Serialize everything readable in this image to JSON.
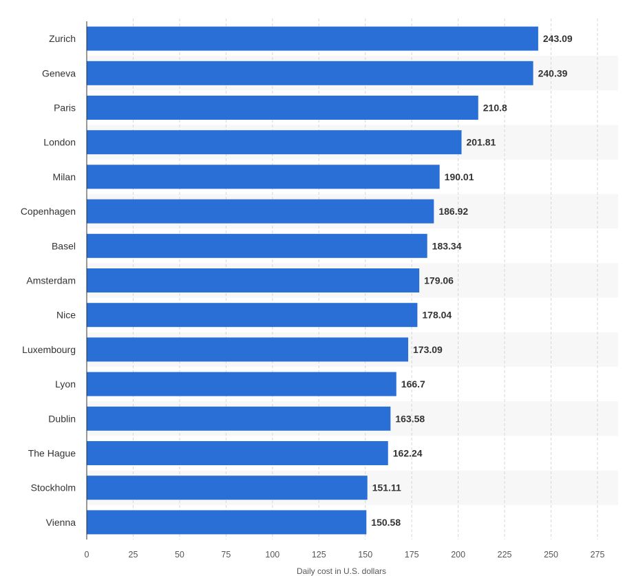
{
  "chart_data": {
    "type": "bar",
    "orientation": "horizontal",
    "categories": [
      "Zurich",
      "Geneva",
      "Paris",
      "London",
      "Milan",
      "Copenhagen",
      "Basel",
      "Amsterdam",
      "Nice",
      "Luxembourg",
      "Lyon",
      "Dublin",
      "The Hague",
      "Stockholm",
      "Vienna"
    ],
    "values": [
      243.09,
      240.39,
      210.8,
      201.81,
      190.01,
      186.92,
      183.34,
      179.06,
      178.04,
      173.09,
      166.7,
      163.58,
      162.24,
      151.11,
      150.58
    ],
    "value_labels": [
      "243.09",
      "240.39",
      "210.8",
      "201.81",
      "190.01",
      "186.92",
      "183.34",
      "179.06",
      "178.04",
      "173.09",
      "166.7",
      "163.58",
      "162.24",
      "151.11",
      "150.58"
    ],
    "xlabel": "Daily cost in U.S. dollars",
    "xlim": [
      0,
      275
    ],
    "xticks": [
      "0",
      "25",
      "50",
      "75",
      "100",
      "125",
      "150",
      "175",
      "200",
      "225",
      "250",
      "275"
    ],
    "grid": true,
    "bar_color": "#2a6fd6",
    "band_color": "#f7f7f7"
  }
}
